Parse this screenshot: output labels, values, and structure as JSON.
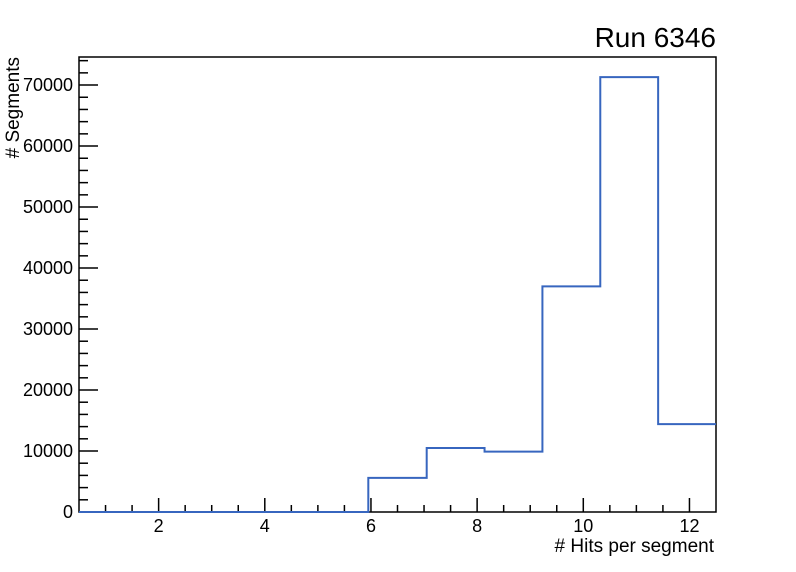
{
  "page": {
    "background": "#ffffff"
  },
  "chart_data": {
    "type": "histogram",
    "title": "Run 6346",
    "xlabel": "# Hits per segment",
    "ylabel": "# Segments",
    "xlim": [
      0.5,
      12.5
    ],
    "ylim": [
      0,
      74600
    ],
    "x_major_ticks": [
      2,
      4,
      6,
      8,
      10,
      12
    ],
    "x_minor_step": 0.5,
    "y_major_ticks": [
      0,
      10000,
      20000,
      30000,
      40000,
      50000,
      60000,
      70000
    ],
    "y_minor_step": 2000,
    "bin_edges": [
      0.5,
      1.59,
      2.68,
      3.77,
      4.86,
      5.95,
      7.05,
      8.14,
      9.23,
      10.32,
      11.41,
      12.5
    ],
    "bin_values": [
      0,
      0,
      0,
      0,
      0,
      5600,
      10500,
      9900,
      37000,
      71300,
      14400
    ],
    "line_color": "#3766bf",
    "axis_color": "#000000",
    "text_color": "#000000",
    "grid": false,
    "legend_position": "none"
  }
}
